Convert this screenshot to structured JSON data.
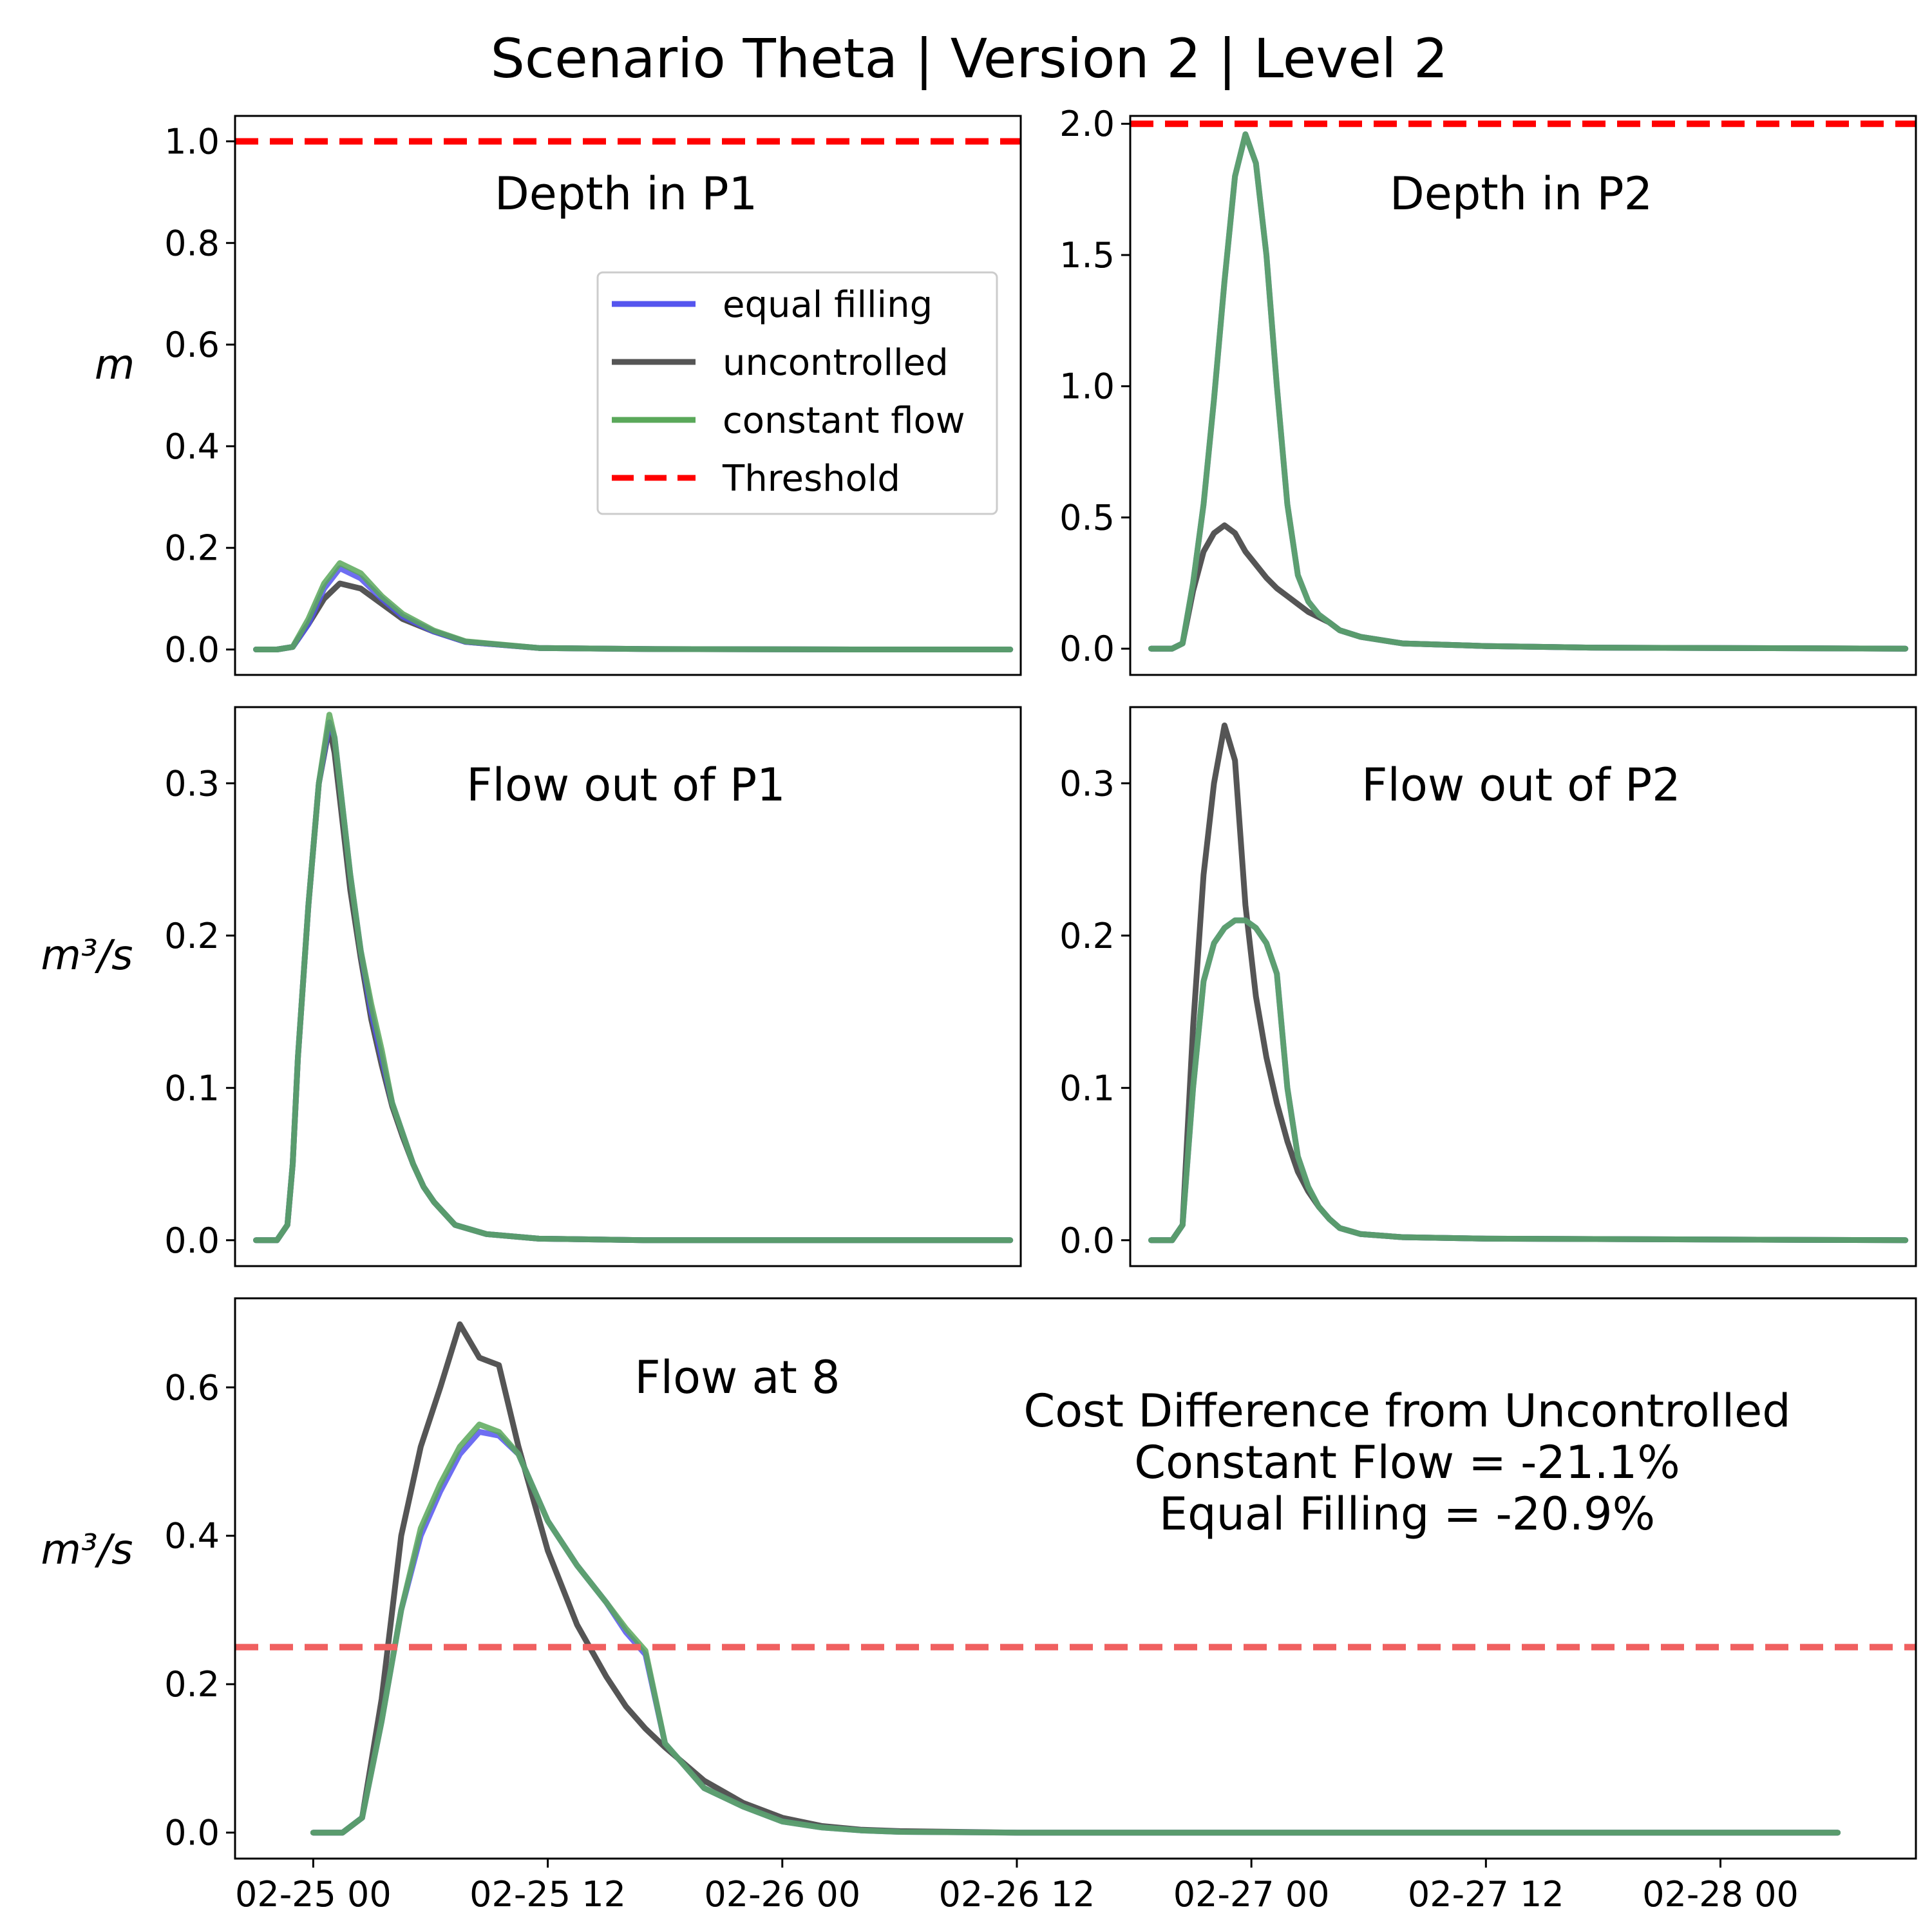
{
  "figure_title": "Scenario Theta | Version 2 | Level 2",
  "colors": {
    "equal_filling": "#5555ee",
    "uncontrolled": "#555555",
    "constant_flow": "#5aa85a",
    "threshold": "#ff0000",
    "threshold_faded": "#f06060",
    "overlap": "#0f5a2a"
  },
  "legend": [
    {
      "label": "equal filling",
      "color": "#5555ee",
      "style": "solid"
    },
    {
      "label": "uncontrolled",
      "color": "#555555",
      "style": "solid"
    },
    {
      "label": "constant flow",
      "color": "#5aa85a",
      "style": "solid"
    },
    {
      "label": "Threshold",
      "color": "#ff0000",
      "style": "dashed"
    }
  ],
  "xlabels": [
    "02-25 00",
    "02-25 12",
    "02-26 00",
    "02-26 12",
    "02-27 00",
    "02-27 12",
    "02-28 00"
  ],
  "chart_data": [
    {
      "type": "line",
      "title": "Depth in P1",
      "ylabel": "m",
      "ylim": [
        -0.05,
        1.05
      ],
      "yticks": [
        "0.0",
        "0.2",
        "0.4",
        "0.6",
        "0.8",
        "1.0"
      ],
      "threshold": 1.0,
      "x_unit": "hours from 02-25 00",
      "xlim": [
        -4,
        71
      ],
      "series": [
        {
          "name": "equal filling",
          "x": [
            -2,
            0,
            1.5,
            3,
            4.5,
            6,
            8,
            10,
            12,
            15,
            18,
            25,
            35,
            55,
            70
          ],
          "y": [
            0,
            0,
            0.005,
            0.05,
            0.12,
            0.16,
            0.14,
            0.1,
            0.065,
            0.035,
            0.015,
            0.003,
            0.001,
            0,
            0
          ]
        },
        {
          "name": "uncontrolled",
          "x": [
            -2,
            0,
            1.5,
            3,
            4.5,
            6,
            8,
            10,
            12,
            15,
            18,
            25,
            35,
            55,
            70
          ],
          "y": [
            0,
            0,
            0.005,
            0.05,
            0.1,
            0.13,
            0.12,
            0.09,
            0.06,
            0.035,
            0.015,
            0.003,
            0.001,
            0,
            0
          ]
        },
        {
          "name": "constant flow",
          "x": [
            -2,
            0,
            1.5,
            3,
            4.5,
            6,
            8,
            10,
            12,
            15,
            18,
            25,
            35,
            55,
            70
          ],
          "y": [
            0,
            0,
            0.005,
            0.06,
            0.13,
            0.17,
            0.15,
            0.105,
            0.07,
            0.037,
            0.016,
            0.003,
            0.001,
            0,
            0
          ]
        }
      ]
    },
    {
      "type": "line",
      "title": "Depth in P2",
      "ylim": [
        -0.1,
        2.03
      ],
      "yticks": [
        "0.0",
        "0.5",
        "1.0",
        "1.5",
        "2.0"
      ],
      "threshold": 2.0,
      "x_unit": "hours from 02-25 00",
      "xlim": [
        -4,
        71
      ],
      "series": [
        {
          "name": "equal filling",
          "x": [
            -2,
            0,
            1,
            2,
            3,
            4,
            5,
            6,
            7,
            8,
            9,
            10,
            11,
            12,
            13,
            14,
            15,
            16,
            18,
            22,
            30,
            40,
            70
          ],
          "y": [
            0,
            0,
            0.02,
            0.25,
            0.55,
            0.95,
            1.4,
            1.8,
            1.96,
            1.85,
            1.5,
            1.0,
            0.55,
            0.28,
            0.18,
            0.13,
            0.1,
            0.07,
            0.045,
            0.02,
            0.01,
            0.004,
            0
          ]
        },
        {
          "name": "uncontrolled",
          "x": [
            -2,
            0,
            1,
            2,
            3,
            4,
            5,
            6,
            7,
            8,
            9,
            10,
            11,
            12,
            13,
            14,
            15,
            16,
            18,
            22,
            30,
            40,
            70
          ],
          "y": [
            0,
            0,
            0.02,
            0.22,
            0.37,
            0.44,
            0.47,
            0.44,
            0.37,
            0.32,
            0.27,
            0.23,
            0.2,
            0.17,
            0.14,
            0.12,
            0.1,
            0.07,
            0.045,
            0.02,
            0.01,
            0.004,
            0
          ]
        },
        {
          "name": "constant flow",
          "x": [
            -2,
            0,
            1,
            2,
            3,
            4,
            5,
            6,
            7,
            8,
            9,
            10,
            11,
            12,
            13,
            14,
            15,
            16,
            18,
            22,
            30,
            40,
            70
          ],
          "y": [
            0,
            0,
            0.02,
            0.25,
            0.55,
            0.95,
            1.4,
            1.8,
            1.96,
            1.85,
            1.5,
            1.0,
            0.55,
            0.28,
            0.18,
            0.13,
            0.1,
            0.07,
            0.045,
            0.02,
            0.01,
            0.004,
            0
          ]
        }
      ]
    },
    {
      "type": "line",
      "title": "Flow out of P1",
      "ylabel": "m³/s",
      "ylim": [
        -0.017,
        0.35
      ],
      "yticks": [
        "0.0",
        "0.1",
        "0.2",
        "0.3"
      ],
      "x_unit": "hours from 02-25 00",
      "xlim": [
        -4,
        71
      ],
      "series": [
        {
          "name": "equal filling",
          "x": [
            -2,
            0,
            1,
            1.5,
            2,
            3,
            4,
            5,
            5.5,
            6,
            7,
            8,
            9,
            10,
            11,
            12,
            13,
            14,
            15,
            17,
            20,
            25,
            35,
            70
          ],
          "y": [
            0,
            0,
            0.01,
            0.05,
            0.12,
            0.22,
            0.3,
            0.34,
            0.33,
            0.3,
            0.24,
            0.19,
            0.15,
            0.12,
            0.09,
            0.07,
            0.05,
            0.035,
            0.025,
            0.01,
            0.004,
            0.001,
            0,
            0
          ]
        },
        {
          "name": "uncontrolled",
          "x": [
            -2,
            0,
            1,
            1.5,
            2,
            3,
            4,
            5,
            5.5,
            6,
            7,
            8,
            9,
            10,
            11,
            12,
            13,
            14,
            15,
            17,
            20,
            25,
            35,
            70
          ],
          "y": [
            0,
            0,
            0.01,
            0.05,
            0.12,
            0.22,
            0.3,
            0.337,
            0.32,
            0.29,
            0.23,
            0.185,
            0.145,
            0.115,
            0.088,
            0.068,
            0.05,
            0.035,
            0.025,
            0.01,
            0.004,
            0.001,
            0,
            0
          ]
        },
        {
          "name": "constant flow",
          "x": [
            -2,
            0,
            1,
            1.5,
            2,
            3,
            4,
            5,
            5.5,
            6,
            7,
            8,
            9,
            10,
            11,
            12,
            13,
            14,
            15,
            17,
            20,
            25,
            35,
            70
          ],
          "y": [
            0,
            0,
            0.01,
            0.05,
            0.12,
            0.22,
            0.3,
            0.345,
            0.33,
            0.3,
            0.24,
            0.19,
            0.155,
            0.125,
            0.09,
            0.07,
            0.05,
            0.035,
            0.025,
            0.01,
            0.004,
            0.001,
            0,
            0
          ]
        }
      ]
    },
    {
      "type": "line",
      "title": "Flow out of P2",
      "ylim": [
        -0.017,
        0.35
      ],
      "yticks": [
        "0.0",
        "0.1",
        "0.2",
        "0.3"
      ],
      "x_unit": "hours from 02-25 00",
      "xlim": [
        -4,
        71
      ],
      "series": [
        {
          "name": "equal filling",
          "x": [
            -2,
            0,
            1,
            2,
            3,
            4,
            5,
            6,
            7,
            8,
            9,
            10,
            11,
            12,
            13,
            14,
            15,
            16,
            18,
            22,
            30,
            70
          ],
          "y": [
            0,
            0,
            0.01,
            0.1,
            0.17,
            0.195,
            0.205,
            0.21,
            0.21,
            0.205,
            0.195,
            0.175,
            0.1,
            0.055,
            0.035,
            0.022,
            0.014,
            0.008,
            0.004,
            0.002,
            0.001,
            0
          ]
        },
        {
          "name": "uncontrolled",
          "x": [
            -2,
            0,
            1,
            2,
            3,
            4,
            5,
            6,
            7,
            8,
            9,
            10,
            11,
            12,
            13,
            14,
            15,
            16,
            18,
            22,
            30,
            70
          ],
          "y": [
            0,
            0,
            0.01,
            0.14,
            0.24,
            0.3,
            0.338,
            0.315,
            0.22,
            0.16,
            0.12,
            0.09,
            0.065,
            0.045,
            0.032,
            0.022,
            0.014,
            0.008,
            0.004,
            0.002,
            0.001,
            0
          ]
        },
        {
          "name": "constant flow",
          "x": [
            -2,
            0,
            1,
            2,
            3,
            4,
            5,
            6,
            7,
            8,
            9,
            10,
            11,
            12,
            13,
            14,
            15,
            16,
            18,
            22,
            30,
            70
          ],
          "y": [
            0,
            0,
            0.01,
            0.1,
            0.17,
            0.195,
            0.205,
            0.21,
            0.21,
            0.205,
            0.195,
            0.175,
            0.1,
            0.055,
            0.035,
            0.022,
            0.014,
            0.008,
            0.004,
            0.002,
            0.001,
            0
          ]
        }
      ]
    },
    {
      "type": "line",
      "title": "Flow at 8",
      "ylabel": "m³/s",
      "ylim": [
        -0.035,
        0.72
      ],
      "yticks": [
        "0.0",
        "0.2",
        "0.4",
        "0.6"
      ],
      "threshold": 0.25,
      "x_unit": "hours from 02-25 00",
      "xlim": [
        -4,
        82
      ],
      "series": [
        {
          "name": "equal filling",
          "x": [
            0,
            1.5,
            2.5,
            3.5,
            4.5,
            5.5,
            6.5,
            7.5,
            8.5,
            9.5,
            10.5,
            12,
            13.5,
            15,
            16,
            17,
            18,
            20,
            22,
            24,
            26,
            28,
            30,
            36,
            48,
            78
          ],
          "y": [
            0,
            0,
            0.02,
            0.15,
            0.3,
            0.4,
            0.46,
            0.51,
            0.54,
            0.535,
            0.51,
            0.42,
            0.36,
            0.31,
            0.27,
            0.24,
            0.12,
            0.06,
            0.035,
            0.015,
            0.007,
            0.003,
            0.001,
            0,
            0,
            0
          ]
        },
        {
          "name": "uncontrolled",
          "x": [
            0,
            1.5,
            2.5,
            3.5,
            4.5,
            5.5,
            6.5,
            7.5,
            8.5,
            9.5,
            10.5,
            12,
            13.5,
            15,
            16,
            17,
            18,
            20,
            22,
            24,
            26,
            28,
            30,
            36,
            48,
            78
          ],
          "y": [
            0,
            0,
            0.02,
            0.18,
            0.4,
            0.52,
            0.6,
            0.685,
            0.64,
            0.63,
            0.52,
            0.38,
            0.28,
            0.21,
            0.17,
            0.14,
            0.115,
            0.07,
            0.04,
            0.02,
            0.009,
            0.004,
            0.002,
            0,
            0,
            0
          ]
        },
        {
          "name": "constant flow",
          "x": [
            0,
            1.5,
            2.5,
            3.5,
            4.5,
            5.5,
            6.5,
            7.5,
            8.5,
            9.5,
            10.5,
            12,
            13.5,
            15,
            16,
            17,
            18,
            20,
            22,
            24,
            26,
            28,
            30,
            36,
            48,
            78
          ],
          "y": [
            0,
            0,
            0.02,
            0.15,
            0.3,
            0.41,
            0.47,
            0.52,
            0.55,
            0.54,
            0.51,
            0.42,
            0.36,
            0.31,
            0.275,
            0.245,
            0.12,
            0.06,
            0.035,
            0.015,
            0.007,
            0.003,
            0.001,
            0,
            0,
            0
          ]
        }
      ]
    }
  ],
  "annotation": {
    "line1": "Cost Difference from Uncontrolled",
    "line2": "Constant Flow = -21.1%",
    "line3": "Equal Filling = -20.9%"
  }
}
